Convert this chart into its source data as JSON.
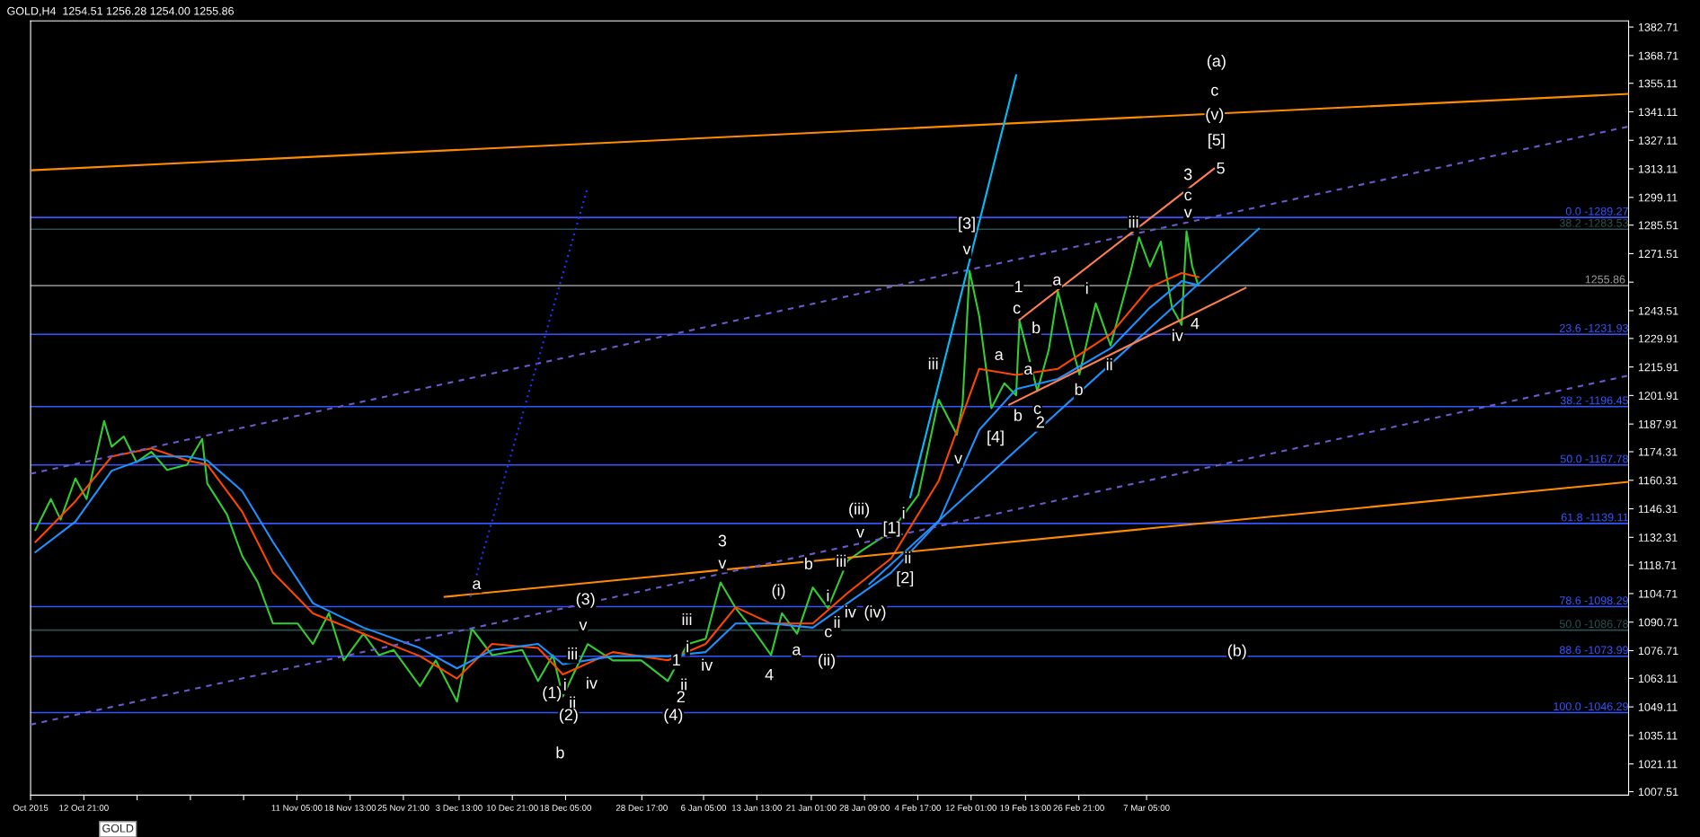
{
  "chart_data": {
    "type": "line",
    "title": "GOLD,H4  1254.51 1256.28 1254.00 1255.86",
    "xlim": [
      "2015-10-05T13:00",
      "2016-05-12T14:00"
    ],
    "ylim": [
      1005.8,
      1385.7
    ],
    "xticks": [
      {
        "value": "2015-10-05T13:00",
        "label": "Oct 2015"
      },
      {
        "value": "2015-10-12T21:00",
        "label": "12 Oct 21:00"
      },
      {
        "value": "2015-10-20T05:00",
        "label": null
      },
      {
        "value": "2015-10-27T13:00",
        "label": null
      },
      {
        "value": "2015-11-03T21:00",
        "label": null
      },
      {
        "value": "2015-11-11T05:00",
        "label": "11 Nov 05:00"
      },
      {
        "value": "2015-11-18T13:00",
        "label": "18 Nov 13:00"
      },
      {
        "value": "2015-11-25T21:00",
        "label": "25 Nov 21:00"
      },
      {
        "value": "2015-12-03T13:00",
        "label": "3 Dec 13:00"
      },
      {
        "value": "2015-12-10T21:00",
        "label": "10 Dec 21:00"
      },
      {
        "value": "2015-12-18T05:00",
        "label": "18 Dec 05:00"
      },
      {
        "value": "2015-12-28T17:00",
        "label": "28 Dec 17:00"
      },
      {
        "value": "2016-01-06T05:00",
        "label": "6 Jan 05:00"
      },
      {
        "value": "2016-01-13T13:00",
        "label": "13 Jan 13:00"
      },
      {
        "value": "2016-01-21T01:00",
        "label": "21 Jan 01:00"
      },
      {
        "value": "2016-01-28T09:00",
        "label": "28 Jan 09:00"
      },
      {
        "value": "2016-02-04T17:00",
        "label": "4 Feb 17:00"
      },
      {
        "value": "2016-02-12T01:00",
        "label": "12 Feb 01:00"
      },
      {
        "value": "2016-02-19T13:00",
        "label": "19 Feb 13:00"
      },
      {
        "value": "2016-02-26T21:00",
        "label": "26 Feb 21:00"
      },
      {
        "value": "2016-03-07T05:00",
        "label": "7 Mar 05:00"
      }
    ],
    "yticks": [
      1382.71,
      1368.71,
      1355.11,
      1341.11,
      1327.11,
      1313.11,
      1299.11,
      1285.51,
      1271.51,
      {
        "value": 1257.51,
        "label": null
      },
      1243.51,
      1229.91,
      1215.91,
      1201.91,
      1187.91,
      1174.31,
      1160.31,
      1146.31,
      1132.31,
      1118.71,
      1104.71,
      1090.71,
      1076.71,
      1063.11,
      1049.11,
      1035.11,
      1021.11,
      1007.51
    ],
    "grid": false,
    "series": [
      {
        "color": "#32cd32",
        "x": [
          "2015-10-06T05:00",
          "2015-10-08T08:00",
          "2015-10-09T16:00",
          "2015-10-11T17:00",
          "2015-10-13T06:00",
          "2015-10-15T16:00",
          "2015-10-16T17:00",
          "2015-10-18T09:00",
          "2015-10-20T03:00",
          "2015-10-22T04:00",
          "2015-10-24T08:00",
          "2015-10-27T02:00",
          "2015-10-29T04:00",
          "2015-10-29T21:00",
          "2015-11-01T14:00",
          "2015-11-03T16:00",
          "2015-11-05T20:00",
          "2015-11-07T22:00",
          "2015-11-11T08:00",
          "2015-11-13T10:00",
          "2015-11-15T15:00",
          "2015-11-17T16:00",
          "2015-11-20T09:00",
          "2015-11-22T12:00",
          "2015-11-24T13:00",
          "2015-11-28T04:00",
          "2015-11-30T08:00",
          "2015-12-03T06:00",
          "2015-12-05T07:00",
          "2015-12-08T02:00",
          "2015-12-12T06:00",
          "2015-12-14T10:00",
          "2015-12-16T11:00",
          "2015-12-17T20:00",
          "2015-12-21T06:00",
          "2015-12-24T17:00",
          "2015-12-28T15:00",
          "2016-01-01T07:00",
          "2016-01-04T00:00",
          "2016-01-06T12:00",
          "2016-01-08T13:00",
          "2016-01-10T15:00",
          "2016-01-13T10:00",
          "2016-01-15T12:00",
          "2016-01-17T00:00",
          "2016-01-19T02:00",
          "2016-01-21T06:00",
          "2016-01-23T08:00",
          "2016-01-26T01:00",
          "2016-01-28T00:00",
          "2016-02-01T01:00",
          "2016-02-04T19:00",
          "2016-02-07T14:00",
          "2016-02-10T02:00",
          "2016-02-10T21:00",
          "2016-02-11T20:00",
          "2016-02-13T04:00",
          "2016-02-14T20:00",
          "2016-02-16T15:00",
          "2016-02-18T06:00",
          "2016-02-18T17:00",
          "2016-02-21T04:00",
          "2016-02-22T18:00",
          "2016-02-24T00:00",
          "2016-02-26T23:00",
          "2016-02-29T05:00",
          "2016-03-02T06:00",
          "2016-03-05T01:00",
          "2016-03-06T04:00",
          "2016-03-07T16:00",
          "2016-03-09T04:00",
          "2016-03-10T17:00",
          "2016-03-12T01:00",
          "2016-03-12T17:00",
          "2016-03-13T12:00",
          "2016-03-14T08:00"
        ],
        "values": [
          1135.9,
          1151.1,
          1141.0,
          1161.2,
          1151.1,
          1189.4,
          1176.8,
          1181.8,
          1169.2,
          1174.3,
          1165.4,
          1167.9,
          1180.6,
          1158.7,
          1143.5,
          1123.3,
          1110.2,
          1090.0,
          1090.0,
          1079.9,
          1095.1,
          1071.9,
          1085.0,
          1074.5,
          1077.0,
          1059.3,
          1071.9,
          1051.7,
          1087.5,
          1074.5,
          1077.0,
          1061.8,
          1074.5,
          1054.2,
          1079.9,
          1071.9,
          1071.9,
          1061.8,
          1079.9,
          1082.5,
          1110.2,
          1097.6,
          1085.0,
          1074.5,
          1095.1,
          1085.0,
          1107.7,
          1097.6,
          1120.8,
          1125.8,
          1135.1,
          1153.2,
          1199.9,
          1182.7,
          1197.8,
          1263.1,
          1240.8,
          1195.7,
          1207.9,
          1202.0,
          1238.7,
          1204.2,
          1224.4,
          1253.0,
          1212.2,
          1247.1,
          1226.5,
          1263.1,
          1279.5,
          1265.2,
          1277.4,
          1245.0,
          1236.6,
          1282.5,
          1265.2,
          1255.86
        ]
      },
      {
        "color": "#ff4500",
        "x": [
          "2015-10-06T05:00",
          "2015-10-11T17:00",
          "2015-10-16T17:00",
          "2015-10-22T04:00",
          "2015-10-27T02:00",
          "2015-10-29T21:00",
          "2015-11-03T16:00",
          "2015-11-07T22:00",
          "2015-11-13T10:00",
          "2015-11-20T09:00",
          "2015-11-28T04:00",
          "2015-12-03T06:00",
          "2015-12-08T02:00",
          "2015-12-14T10:00",
          "2015-12-17T20:00",
          "2015-12-24T17:00",
          "2016-01-01T07:00",
          "2016-01-06T12:00",
          "2016-01-10T15:00",
          "2016-01-15T12:00",
          "2016-01-21T06:00",
          "2016-01-26T01:00",
          "2016-02-01T01:00",
          "2016-02-07T14:00",
          "2016-02-13T04:00",
          "2016-02-18T06:00",
          "2016-02-24T00:00",
          "2016-03-02T06:00",
          "2016-03-07T16:00",
          "2016-03-12T01:00",
          "2016-03-14T08:00"
        ],
        "values": [
          1130,
          1150,
          1172,
          1176,
          1170,
          1168,
          1145,
          1115,
          1095,
          1085,
          1074,
          1063,
          1080,
          1078,
          1065,
          1076,
          1072,
          1080,
          1098,
          1090,
          1090,
          1105,
          1122,
          1160,
          1215,
          1212,
          1215,
          1232,
          1255,
          1262,
          1260
        ]
      },
      {
        "color": "#1e90ff",
        "x": [
          "2015-10-06T05:00",
          "2015-10-11T17:00",
          "2015-10-16T17:00",
          "2015-10-22T04:00",
          "2015-10-27T02:00",
          "2015-10-29T21:00",
          "2015-11-03T16:00",
          "2015-11-07T22:00",
          "2015-11-13T10:00",
          "2015-11-20T09:00",
          "2015-11-28T04:00",
          "2015-12-03T06:00",
          "2015-12-08T02:00",
          "2015-12-14T10:00",
          "2015-12-17T20:00",
          "2015-12-24T17:00",
          "2016-01-01T07:00",
          "2016-01-06T12:00",
          "2016-01-10T15:00",
          "2016-01-15T12:00",
          "2016-01-21T06:00",
          "2016-01-26T01:00",
          "2016-02-01T01:00",
          "2016-02-07T14:00",
          "2016-02-13T04:00",
          "2016-02-18T06:00",
          "2016-02-24T00:00",
          "2016-03-02T06:00",
          "2016-03-07T16:00",
          "2016-03-12T01:00",
          "2016-03-14T08:00"
        ],
        "values": [
          1125,
          1140,
          1165,
          1172,
          1172,
          1170,
          1155,
          1130,
          1100,
          1088,
          1078,
          1068,
          1077,
          1080,
          1070,
          1074,
          1074,
          1076,
          1090,
          1090,
          1088,
          1100,
          1115,
          1140,
          1185,
          1205,
          1210,
          1225,
          1245,
          1258,
          1256
        ]
      },
      {
        "color": "#ff8c00",
        "x": [
          "2015-10-05T13:00",
          "2016-05-12T14:00"
        ],
        "values": [
          1312.4,
          1349.9
        ]
      },
      {
        "color": "#ff8c00",
        "x": [
          "2015-12-01T13:00",
          "2016-05-12T14:00"
        ],
        "values": [
          1103.1,
          1159.5
        ]
      },
      {
        "color": "#6a5acd",
        "line_style": "dashed",
        "x": [
          "2015-10-05T13:00",
          "2016-05-12T14:00"
        ],
        "values": [
          1163.5,
          1333.9
        ]
      },
      {
        "color": "#6a5acd",
        "line_style": "dashed",
        "x": [
          "2015-10-05T13:00",
          "2016-05-12T14:00"
        ],
        "values": [
          1040.4,
          1211.7
        ]
      },
      {
        "color": "#2233ff",
        "line_style": "dotted",
        "x": [
          "2015-12-05T02:00",
          "2015-12-21T06:00"
        ],
        "values": [
          1103.1,
          1304.0
        ]
      },
      {
        "color": "#00bfff",
        "x": [
          "2016-02-03T16:00",
          "2016-02-18T06:00"
        ],
        "values": [
          1152.0,
          1359.1
        ]
      },
      {
        "color": "#1e90ff",
        "x": [
          "2016-01-29T01:00",
          "2016-03-22T16:00"
        ],
        "values": [
          1109.4,
          1283.7
        ]
      },
      {
        "color": "#ff7f50",
        "x": [
          "2016-02-18T17:00",
          "2016-03-16T12:00"
        ],
        "values": [
          1239.1,
          1313.2
        ]
      },
      {
        "color": "#ff7f50",
        "x": [
          "2016-02-17T07:00",
          "2016-03-20T20:00"
        ],
        "values": [
          1197.4,
          1254.7
        ]
      }
    ],
    "ref_lines": [
      {
        "axis": "y",
        "value": 1289.27,
        "color": "#3355ff"
      },
      {
        "axis": "y",
        "value": 1283.53,
        "color": "#2f4f4f"
      },
      {
        "axis": "y",
        "value": 1231.93,
        "color": "#3355ff"
      },
      {
        "axis": "y",
        "value": 1196.45,
        "color": "#3355ff"
      },
      {
        "axis": "y",
        "value": 1167.78,
        "color": "#3355ff"
      },
      {
        "axis": "y",
        "value": 1139.11,
        "color": "#3355ff"
      },
      {
        "axis": "y",
        "value": 1098.29,
        "color": "#3355ff"
      },
      {
        "axis": "y",
        "value": 1086.78,
        "color": "#2f4f4f"
      },
      {
        "axis": "y",
        "value": 1073.99,
        "color": "#3355ff"
      },
      {
        "axis": "y",
        "value": 1046.29,
        "color": "#3355ff"
      },
      {
        "axis": "y",
        "value": 1255.86,
        "label": "1255.86",
        "color": "#999999"
      }
    ],
    "annotations": [
      "GOLD",
      {
        "text": "0.0 -1289.27",
        "x": "2016-05-12T14:00",
        "y": 1289.27
      },
      {
        "text": "38.2 -1283.53",
        "x": "2016-05-12T14:00",
        "y": 1283.53
      },
      {
        "text": "23.6 -1231.93",
        "x": "2016-05-12T14:00",
        "y": 1231.93
      },
      {
        "text": "38.2 -1196.45",
        "x": "2016-05-12T14:00",
        "y": 1196.45
      },
      {
        "text": "50.0 -1167.78",
        "x": "2016-05-12T14:00",
        "y": 1167.78
      },
      {
        "text": "61.8 -1139.11",
        "x": "2016-05-12T14:00",
        "y": 1139.11
      },
      {
        "text": "78.6 -1098.29",
        "x": "2016-05-12T14:00",
        "y": 1098.29
      },
      {
        "text": "50.0 -1086.78",
        "x": "2016-05-12T14:00",
        "y": 1086.78
      },
      {
        "text": "88.6 -1073.99",
        "x": "2016-05-12T14:00",
        "y": 1073.99
      },
      {
        "text": "100.0 -1046.29",
        "x": "2016-05-12T14:00",
        "y": 1046.29
      },
      {
        "text": "a",
        "x": "2015-12-05T23:00",
        "y": 1109.0
      },
      {
        "text": "b",
        "x": "2015-12-17T11:00",
        "y": 1026.0
      },
      {
        "text": "(3)",
        "x": "2015-12-20T23:00",
        "y": 1101.4
      },
      {
        "text": "v",
        "x": "2015-12-20T15:00",
        "y": 1088.8
      },
      {
        "text": "iii",
        "x": "2015-12-19T04:00",
        "y": 1074.5
      },
      {
        "text": "iv",
        "x": "2015-12-21T19:00",
        "y": 1060.1
      },
      {
        "text": "(1)",
        "x": "2015-12-16T08:00",
        "y": 1055.5
      },
      {
        "text": "i",
        "x": "2015-12-18T03:00",
        "y": 1059.3
      },
      {
        "text": "ii",
        "x": "2015-12-19T04:00",
        "y": 1050.5
      },
      {
        "text": "(2)",
        "x": "2015-12-18T15:00",
        "y": 1044.6
      },
      {
        "text": "iii",
        "x": "2016-01-03T22:00",
        "y": 1091.3
      },
      {
        "text": "1",
        "x": "2016-01-02T11:00",
        "y": 1071.5
      },
      {
        "text": "i",
        "x": "2016-01-04T00:00",
        "y": 1078.0
      },
      {
        "text": "ii",
        "x": "2016-01-03T12:00",
        "y": 1059.3
      },
      {
        "text": "2",
        "x": "2016-01-03T02:00",
        "y": 1053.4
      },
      {
        "text": "(4)",
        "x": "2016-01-02T01:00",
        "y": 1044.6
      },
      {
        "text": "iv",
        "x": "2016-01-06T16:00",
        "y": 1069.0
      },
      {
        "text": "3",
        "x": "2016-01-08T19:00",
        "y": 1130.0
      },
      {
        "text": "v",
        "x": "2016-01-08T19:00",
        "y": 1119.1
      },
      {
        "text": "(i)",
        "x": "2016-01-16T13:00",
        "y": 1105.6
      },
      {
        "text": "4",
        "x": "2016-01-15T06:00",
        "y": 1064.3
      },
      {
        "text": "a",
        "x": "2016-01-19T00:00",
        "y": 1076.6
      },
      {
        "text": "b",
        "x": "2016-01-20T16:00",
        "y": 1118.7
      },
      {
        "text": "i",
        "x": "2016-01-23T08:00",
        "y": 1103.0
      },
      {
        "text": "iii",
        "x": "2016-01-25T04:00",
        "y": 1120.0
      },
      {
        "text": "(ii)",
        "x": "2016-01-23T04:00",
        "y": 1071.5
      },
      {
        "text": "c",
        "x": "2016-01-23T09:00",
        "y": 1085.4
      },
      {
        "text": "ii",
        "x": "2016-01-24T14:00",
        "y": 1090.0
      },
      {
        "text": "iv",
        "x": "2016-01-26T10:00",
        "y": 1095.1
      },
      {
        "text": "(iii)",
        "x": "2016-01-27T15:00",
        "y": 1145.6
      },
      {
        "text": "v",
        "x": "2016-01-27T19:00",
        "y": 1134.3
      },
      {
        "text": "(iv)",
        "x": "2016-01-29T20:00",
        "y": 1095.1
      },
      {
        "text": "[1]",
        "x": "2016-02-01T03:00",
        "y": 1136.4
      },
      {
        "text": "i",
        "x": "2016-02-02T18:00",
        "y": 1143.5
      },
      {
        "text": "ii",
        "x": "2016-02-03T08:00",
        "y": 1121.6
      },
      {
        "text": "[2]",
        "x": "2016-02-02T23:00",
        "y": 1111.9
      },
      {
        "text": "(a)",
        "x": "2016-03-16T20:00",
        "y": 1365.4
      },
      {
        "text": "c",
        "x": "2016-03-16T14:00",
        "y": 1351.1
      },
      {
        "text": "(v)",
        "x": "2016-03-16T14:00",
        "y": 1339.3
      },
      {
        "text": "[5]",
        "x": "2016-03-16T20:00",
        "y": 1326.7
      },
      {
        "text": "5",
        "x": "2016-03-17T10:00",
        "y": 1312.8
      },
      {
        "text": "3",
        "x": "2016-03-12T22:00",
        "y": 1309.8
      },
      {
        "text": "c",
        "x": "2016-03-12T22:00",
        "y": 1299.7
      },
      {
        "text": "v",
        "x": "2016-03-12T22:00",
        "y": 1291.3
      },
      {
        "text": "iii",
        "x": "2016-03-05T10:00",
        "y": 1286.3
      },
      {
        "text": "[3]",
        "x": "2016-02-11T11:00",
        "y": 1285.8
      },
      {
        "text": "v",
        "x": "2016-02-11T11:00",
        "y": 1273.2
      },
      {
        "text": "1",
        "x": "2016-02-18T14:00",
        "y": 1254.7
      },
      {
        "text": "a",
        "x": "2016-02-23T21:00",
        "y": 1258.1
      },
      {
        "text": "i",
        "x": "2016-02-28T00:00",
        "y": 1253.8
      },
      {
        "text": "c",
        "x": "2016-02-18T08:00",
        "y": 1244.2
      },
      {
        "text": "b",
        "x": "2016-02-21T00:00",
        "y": 1234.5
      },
      {
        "text": "4",
        "x": "2016-03-13T21:00",
        "y": 1236.6
      },
      {
        "text": "iv",
        "x": "2016-03-11T11:00",
        "y": 1230.7
      },
      {
        "text": "a",
        "x": "2016-02-15T21:00",
        "y": 1221.4
      },
      {
        "text": "iii",
        "x": "2016-02-06T20:00",
        "y": 1216.8
      },
      {
        "text": "a",
        "x": "2016-02-19T22:00",
        "y": 1214.3
      },
      {
        "text": "ii",
        "x": "2016-03-02T02:00",
        "y": 1216.4
      },
      {
        "text": "b",
        "x": "2016-02-26T21:00",
        "y": 1204.2
      },
      {
        "text": "c",
        "x": "2016-02-21T04:00",
        "y": 1194.9
      },
      {
        "text": "b",
        "x": "2016-02-18T12:00",
        "y": 1191.5
      },
      {
        "text": "2",
        "x": "2016-02-21T14:00",
        "y": 1188.2
      },
      {
        "text": "[4]",
        "x": "2016-02-15T10:00",
        "y": 1181.0
      },
      {
        "text": "v",
        "x": "2016-02-10T07:00",
        "y": 1170.5
      },
      {
        "text": "(b)",
        "x": "2016-03-19T16:00",
        "y": 1076.1
      }
    ]
  }
}
